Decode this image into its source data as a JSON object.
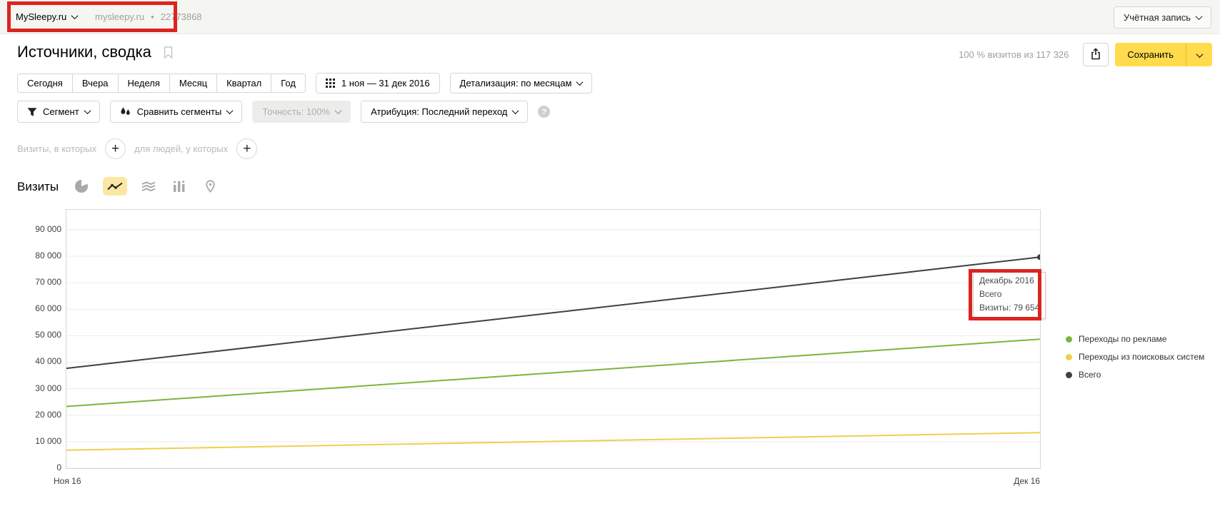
{
  "topbar": {
    "counter_name": "MySleepy.ru",
    "counter_domain": "mysleepy.ru",
    "separator": "•",
    "counter_id": "22773868",
    "account_label": "Учётная запись"
  },
  "header": {
    "title": "Источники, сводка",
    "sampling": "100 % визитов из 117 326",
    "save_label": "Сохранить"
  },
  "periods": {
    "presets": [
      "Сегодня",
      "Вчера",
      "Неделя",
      "Месяц",
      "Квартал",
      "Год"
    ],
    "date_range": "1 ноя — 31 дек 2016",
    "detail_label": "Детализация: по месяцам"
  },
  "filters": {
    "segment": "Сегмент",
    "compare": "Сравнить сегменты",
    "accuracy": "Точность: 100%",
    "attribution": "Атрибуция: Последний переход",
    "help": "?"
  },
  "builder": {
    "visits_label": "Визиты, в которых",
    "people_label": "для людей, у которых",
    "add_label": "+"
  },
  "metric": {
    "title": "Визиты"
  },
  "tooltip": {
    "period": "Декабрь 2016",
    "series": "Всего",
    "value": "Визиты: 79 654"
  },
  "colors": {
    "accent_yellow": "#ffdb4d",
    "annotation_red": "#dc241f",
    "selected_icon_bg": "#fbe7a3"
  },
  "chart_data": {
    "type": "line",
    "title": "Визиты",
    "x": [
      "Ноя 16",
      "Дек 16"
    ],
    "series": [
      {
        "name": "Переходы по рекламе",
        "color": "#7cb53e",
        "values": [
          23300,
          48700
        ]
      },
      {
        "name": "Переходы из поисковых систем",
        "color": "#eed04e",
        "values": [
          6800,
          13400
        ]
      },
      {
        "name": "Всего",
        "color": "#404040",
        "values": [
          37672,
          79654
        ],
        "marker_end": true
      }
    ],
    "ylim": [
      0,
      97500
    ],
    "ytick_values": [
      90000,
      80000,
      70000,
      60000,
      50000,
      40000,
      30000,
      20000,
      10000,
      0
    ],
    "ytick_labels": [
      "90 000",
      "80 000",
      "70 000",
      "60 000",
      "50 000",
      "40 000",
      "30 000",
      "20 000",
      "10 000",
      "0"
    ],
    "grid": true,
    "legend_position": "right"
  }
}
